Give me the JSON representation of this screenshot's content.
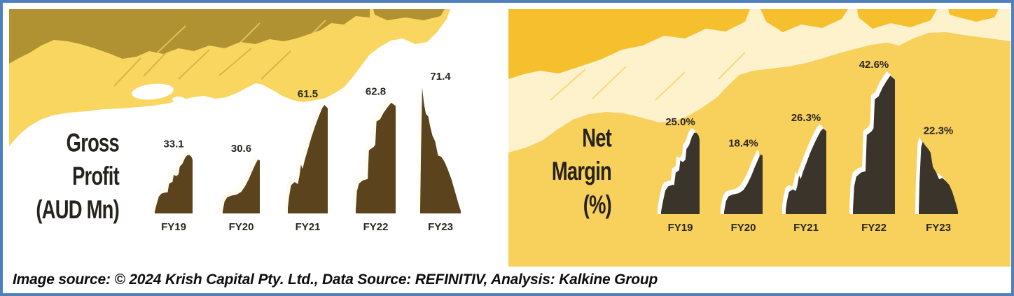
{
  "frame": {
    "border_color": "#4e80bd",
    "background": "#ffffff"
  },
  "caption": "Image source: © 2024 Krish Capital Pty. Ltd., Data Source: REFINITIV, Analysis: Kalkine Group",
  "colors": {
    "left_bar_brown": "#5b431d",
    "left_yellow_paint": "#f8d660",
    "left_olive_paint": "#b19232",
    "right_bar_charcoal": "#3a342b",
    "right_gold_base": "#f8d05c",
    "right_cream_paint": "#fdf2cb",
    "right_bright_gold": "#f6bf2e",
    "bar_highlight_white": "#ffffff",
    "label_text": "#2b2721"
  },
  "chart_data": [
    {
      "type": "bar",
      "title": "Gross Profit (AUD Mn)",
      "title_lines": [
        "Gross",
        "Profit",
        "(AUD Mn)"
      ],
      "categories": [
        "FY19",
        "FY20",
        "FY21",
        "FY22",
        "FY23"
      ],
      "values": [
        33.1,
        30.6,
        61.5,
        62.8,
        71.4
      ],
      "value_labels": [
        "33.1",
        "30.6",
        "61.5",
        "62.8",
        "71.4"
      ],
      "xlabel": "",
      "ylabel": "Gross Profit (AUD Mn)",
      "ylim": [
        0,
        80
      ],
      "grid": false,
      "legend": false,
      "bar_color": "#5b431d",
      "style": "painted-silhouette, values labeled above each bar, no axes shown"
    },
    {
      "type": "bar",
      "title": "Net Margin (%)",
      "title_lines": [
        "Net",
        "Margin",
        "(%)"
      ],
      "categories": [
        "FY19",
        "FY20",
        "FY21",
        "FY22",
        "FY23"
      ],
      "values": [
        25.0,
        18.4,
        26.3,
        42.6,
        22.3
      ],
      "value_labels": [
        "25.0%",
        "18.4%",
        "26.3%",
        "42.6%",
        "22.3%"
      ],
      "xlabel": "",
      "ylabel": "Net Margin (%)",
      "ylim": [
        0,
        48
      ],
      "grid": false,
      "legend": false,
      "bar_color": "#3a342b",
      "style": "painted-silhouette with white brush fringe, values labeled above each bar, no axes shown"
    }
  ]
}
